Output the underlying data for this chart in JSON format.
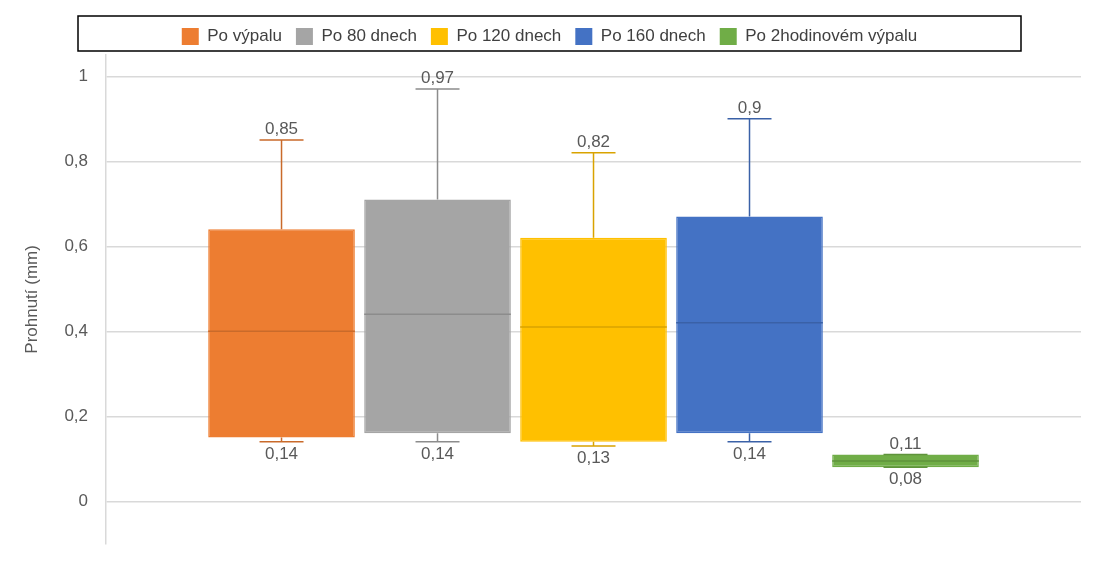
{
  "chart_data": {
    "type": "box",
    "ylabel": "Prohnutí (mm)",
    "categories": [
      null
    ],
    "ylim": [
      -0.1,
      1.05
    ],
    "yticks": [
      {
        "value": 0,
        "label": "0"
      },
      {
        "value": 0.2,
        "label": "0,2"
      },
      {
        "value": 0.4,
        "label": "0,4"
      },
      {
        "value": 0.6,
        "label": "0,6"
      },
      {
        "value": 0.8,
        "label": "0,8"
      },
      {
        "value": 1,
        "label": "1"
      }
    ],
    "grid": "y",
    "legend": "top",
    "annotations": [
      {
        "text": "0,85",
        "y": 0.85
      },
      {
        "text": "0,14",
        "y": 0.14
      },
      {
        "text": "0,97",
        "y": 0.97
      },
      {
        "text": "0,14",
        "y": 0.14
      },
      {
        "text": "0,82",
        "y": 0.82
      },
      {
        "text": "0,13",
        "y": 0.13
      },
      {
        "text": "0,9",
        "y": 0.9
      },
      {
        "text": "0,14",
        "y": 0.14
      },
      {
        "text": "0,11",
        "y": 0.11
      },
      {
        "text": "0,08",
        "y": 0.08
      }
    ],
    "series": [
      {
        "name": "Po výpalu",
        "color": "#ed7d31",
        "boxes": [
          {
            "low": 0.14,
            "q1": 0.15,
            "median": 0.4,
            "q3": 0.64,
            "high": 0.85
          }
        ]
      },
      {
        "name": "Po 80 dnech",
        "color": "#a5a5a5",
        "boxes": [
          {
            "low": 0.14,
            "q1": 0.16,
            "median": 0.44,
            "q3": 0.71,
            "high": 0.97
          }
        ]
      },
      {
        "name": "Po 120 dnech",
        "color": "#ffc000",
        "boxes": [
          {
            "low": 0.13,
            "q1": 0.14,
            "median": 0.41,
            "q3": 0.62,
            "high": 0.82
          }
        ]
      },
      {
        "name": "Po 160 dnech",
        "color": "#4472c4",
        "boxes": [
          {
            "low": 0.14,
            "q1": 0.16,
            "median": 0.42,
            "q3": 0.67,
            "high": 0.9
          }
        ]
      },
      {
        "name": "Po 2hodinovém výpalu",
        "color": "#70ad47",
        "boxes": [
          {
            "low": 0.08,
            "q1": 0.08,
            "median": 0.095,
            "q3": 0.11,
            "high": 0.11
          }
        ]
      }
    ]
  }
}
